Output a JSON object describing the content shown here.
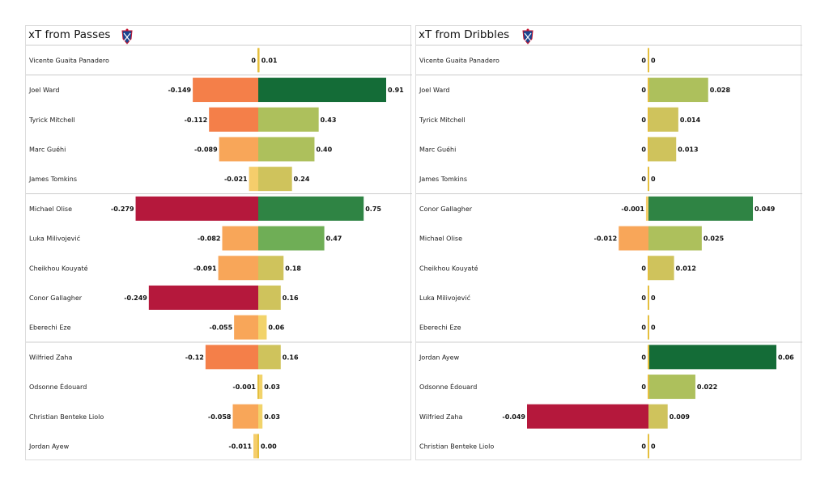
{
  "chart_data": [
    {
      "type": "bar",
      "orientation": "horizontal-diverging",
      "title": "xT from Passes",
      "grid": false,
      "categories": [
        "Vicente Guaita Panadero",
        "Joel Ward",
        "Tyrick Mitchell",
        "Marc Guéhi",
        "James Tomkins",
        "Michael Olise",
        "Luka Milivojević",
        "Cheikhou Kouyaté",
        "Conor Gallagher",
        "Eberechi Eze",
        "Wilfried Zaha",
        "Odsonne Édouard",
        "Christian Benteke Liolo",
        "Jordan Ayew"
      ],
      "negative_values": [
        0,
        -0.149,
        -0.112,
        -0.089,
        -0.021,
        -0.279,
        -0.082,
        -0.091,
        -0.249,
        -0.055,
        -0.12,
        -0.001,
        -0.058,
        -0.011
      ],
      "positive_values": [
        0.01,
        0.91,
        0.43,
        0.4,
        0.24,
        0.75,
        0.47,
        0.18,
        0.16,
        0.06,
        0.16,
        0.03,
        0.03,
        0.0
      ],
      "negative_labels": [
        "0",
        "-0.149",
        "-0.112",
        "-0.089",
        "-0.021",
        "-0.279",
        "-0.082",
        "-0.091",
        "-0.249",
        "-0.055",
        "-0.12",
        "-0.001",
        "-0.058",
        "-0.011"
      ],
      "positive_labels": [
        "0.01",
        "0.91",
        "0.43",
        "0.40",
        "0.24",
        "0.75",
        "0.47",
        "0.18",
        "0.16",
        "0.06",
        "0.16",
        "0.03",
        "0.03",
        "0.00"
      ],
      "group_separators_after_index": [
        0,
        4,
        9
      ],
      "neg_max": 0.28,
      "pos_max": 0.91
    },
    {
      "type": "bar",
      "orientation": "horizontal-diverging",
      "title": "xT from Dribbles",
      "grid": false,
      "categories": [
        "Vicente Guaita Panadero",
        "Joel Ward",
        "Tyrick Mitchell",
        "Marc Guéhi",
        "James Tomkins",
        "Conor Gallagher",
        "Michael Olise",
        "Cheikhou Kouyaté",
        "Luka Milivojević",
        "Eberechi Eze",
        "Jordan Ayew",
        "Odsonne Édouard",
        "Wilfried Zaha",
        "Christian Benteke Liolo"
      ],
      "negative_values": [
        0,
        0,
        0,
        0,
        0,
        -0.001,
        -0.012,
        0,
        0,
        0,
        0,
        0,
        -0.049,
        0
      ],
      "positive_values": [
        0,
        0.028,
        0.014,
        0.013,
        0,
        0.049,
        0.025,
        0.012,
        0,
        0,
        0.06,
        0.022,
        0.009,
        0
      ],
      "negative_labels": [
        "0",
        "0",
        "0",
        "0",
        "0",
        "-0.001",
        "-0.012",
        "0",
        "0",
        "0",
        "0",
        "0",
        "-0.049",
        "0"
      ],
      "positive_labels": [
        "0",
        "0.028",
        "0.014",
        "0.013",
        "0",
        "0.049",
        "0.025",
        "0.012",
        "0",
        "0",
        "0.06",
        "0.022",
        "0.009",
        "0"
      ],
      "group_separators_after_index": [
        0,
        4,
        9
      ],
      "neg_max": 0.049,
      "pos_max": 0.06
    }
  ],
  "colors": {
    "neg_scale": [
      "#f5cd6b",
      "#f8a659",
      "#f47f49",
      "#d4363d",
      "#b5183c"
    ],
    "pos_scale": [
      "#f2d36a",
      "#cfc35c",
      "#adc05c",
      "#6fae56",
      "#2f8444",
      "#146c37"
    ],
    "separator": "#cccccc",
    "zero_line": "#e5bf3e"
  },
  "icons": {
    "club_badge": "crystal-palace-crest-icon"
  }
}
